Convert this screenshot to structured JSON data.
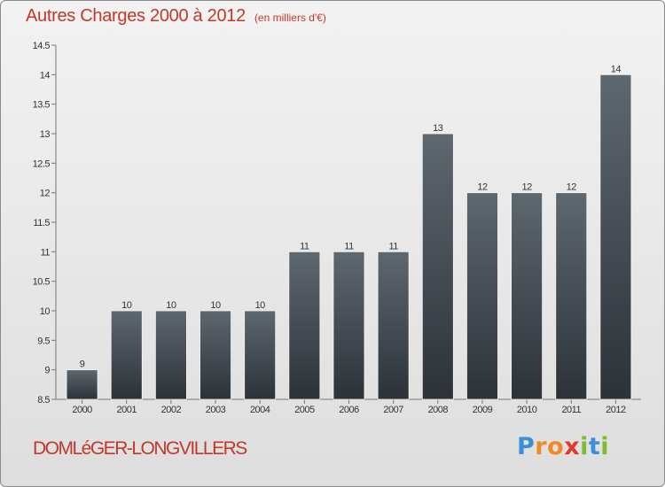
{
  "header": {
    "title": "Autres Charges 2000 à 2012",
    "subtitle": "(en milliers d'€)"
  },
  "footer": {
    "town": "DOMLéGER-LONGVILLERS",
    "brand": "Proxiti",
    "brand_letters": [
      {
        "ch": "P",
        "color": "#3a8fd6"
      },
      {
        "ch": "r",
        "color": "#f08a24"
      },
      {
        "ch": "o",
        "color": "#f08a24"
      },
      {
        "ch": "x",
        "color": "#e23a2a"
      },
      {
        "ch": "i",
        "color": "#7dbb2f"
      },
      {
        "ch": "t",
        "color": "#3a8fd6"
      },
      {
        "ch": "i",
        "color": "#7dbb2f"
      }
    ]
  },
  "chart_data": {
    "type": "bar",
    "title": "Autres Charges 2000 à 2012",
    "subtitle": "(en milliers d'€)",
    "categories": [
      "2000",
      "2001",
      "2002",
      "2003",
      "2004",
      "2005",
      "2006",
      "2007",
      "2008",
      "2009",
      "2010",
      "2011",
      "2012"
    ],
    "values": [
      9,
      10,
      10,
      10,
      10,
      11,
      11,
      11,
      13,
      12,
      12,
      12,
      14
    ],
    "ylim": [
      8.5,
      14.5
    ],
    "yticks": [
      "8.5",
      "9",
      "9.5",
      "10",
      "10.5",
      "11",
      "11.5",
      "12",
      "12.5",
      "13",
      "13.5",
      "14",
      "14.5"
    ],
    "grid": false,
    "legend": "none",
    "bar_color_top": "#5f676f",
    "bar_color_bottom": "#2c3238",
    "title_color": "#c0392b"
  }
}
